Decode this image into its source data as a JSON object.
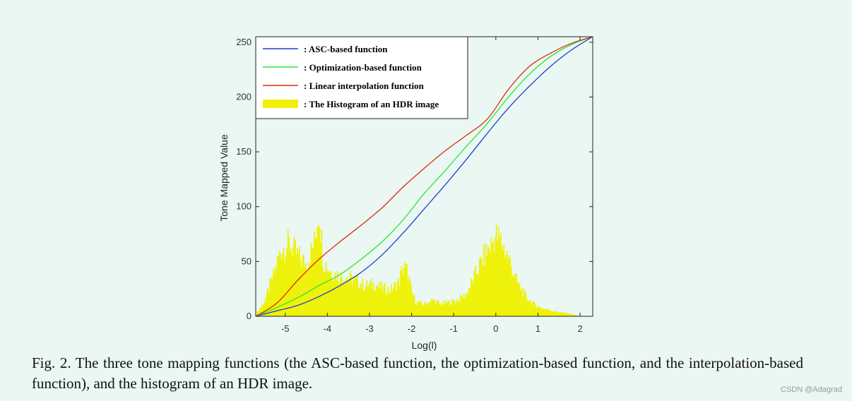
{
  "caption": "Fig. 2. The three tone mapping functions (the ASC-based function, the optimization-based function, and the interpolation-based function), and the histogram of an HDR image.",
  "watermark": "CSDN @Adagrad",
  "chart_data": {
    "type": "line",
    "xlabel": "Log(l)",
    "ylabel": "Tone Mapped Value",
    "xlim": [
      -5.7,
      2.3
    ],
    "ylim": [
      0,
      255
    ],
    "xticks": [
      -5,
      -4,
      -3,
      -2,
      -1,
      0,
      1,
      2
    ],
    "yticks": [
      0,
      50,
      100,
      150,
      200,
      250
    ],
    "legend_position": "top-left",
    "colors": {
      "asc": "#1f3fd0",
      "optimization": "#2ee62e",
      "linear": "#e02a10",
      "histogram": "#eef20a",
      "axes": "#222222"
    },
    "series": [
      {
        "name": ": ASC-based function",
        "x": [
          -5.7,
          -5.2,
          -4.7,
          -4.2,
          -3.7,
          -3.2,
          -2.7,
          -2.2,
          -1.7,
          -1.2,
          -0.7,
          -0.2,
          0.3,
          0.8,
          1.3,
          1.8,
          2.3
        ],
        "y": [
          0,
          5,
          10,
          18,
          28,
          40,
          56,
          76,
          98,
          120,
          143,
          167,
          190,
          210,
          228,
          243,
          255
        ]
      },
      {
        "name": ": Optimization-based function",
        "x": [
          -5.7,
          -5.2,
          -4.7,
          -4.2,
          -3.7,
          -3.2,
          -2.7,
          -2.2,
          -1.7,
          -1.2,
          -0.7,
          -0.2,
          0.3,
          0.8,
          1.3,
          1.8,
          2.3
        ],
        "y": [
          0,
          8,
          17,
          28,
          38,
          52,
          68,
          88,
          112,
          133,
          155,
          176,
          200,
          221,
          237,
          248,
          255
        ]
      },
      {
        "name": ": Linear interpolation function",
        "x": [
          -5.7,
          -5.2,
          -4.7,
          -4.2,
          -3.7,
          -3.2,
          -2.7,
          -2.2,
          -1.7,
          -1.2,
          -0.7,
          -0.2,
          0.3,
          0.8,
          1.3,
          1.8,
          2.3
        ],
        "y": [
          0,
          12,
          33,
          52,
          68,
          83,
          99,
          118,
          135,
          151,
          165,
          180,
          207,
          228,
          240,
          249,
          255
        ]
      }
    ],
    "histogram": {
      "name": ": The Histogram of an HDR image",
      "x": [
        -5.7,
        -5.5,
        -5.3,
        -5.1,
        -4.9,
        -4.7,
        -4.5,
        -4.3,
        -4.2,
        -4.1,
        -3.9,
        -3.7,
        -3.5,
        -3.3,
        -3.1,
        -2.9,
        -2.7,
        -2.5,
        -2.3,
        -2.2,
        -2.1,
        -2.0,
        -1.9,
        -1.7,
        -1.5,
        -1.3,
        -1.1,
        -0.9,
        -0.7,
        -0.5,
        -0.3,
        -0.1,
        0.0,
        0.1,
        0.3,
        0.5,
        0.7,
        0.9,
        1.1,
        1.3,
        1.5,
        1.7,
        1.9,
        2.1,
        2.3
      ],
      "values": [
        2,
        14,
        38,
        66,
        72,
        60,
        52,
        74,
        110,
        55,
        44,
        40,
        38,
        35,
        30,
        32,
        28,
        26,
        34,
        50,
        44,
        24,
        14,
        12,
        16,
        12,
        14,
        16,
        22,
        40,
        58,
        72,
        80,
        76,
        58,
        34,
        20,
        12,
        8,
        6,
        4,
        3,
        1,
        0,
        0
      ]
    }
  }
}
